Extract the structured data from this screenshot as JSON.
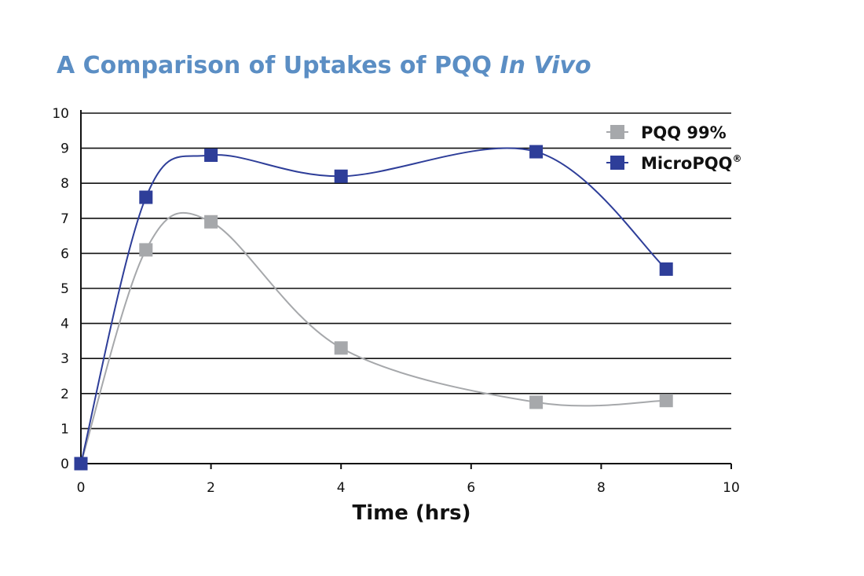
{
  "chart_data": {
    "type": "line",
    "title": "A Comparison of Uptakes of PQQ",
    "title_emphasis": "In Vivo",
    "xlabel": "Time (hrs)",
    "ylabel": "",
    "xlim": [
      0,
      10
    ],
    "ylim": [
      0,
      10
    ],
    "xticks": [
      0,
      2,
      4,
      6,
      8,
      10
    ],
    "yticks": [
      0,
      1,
      2,
      3,
      4,
      5,
      6,
      7,
      8,
      9,
      10
    ],
    "grid": "horizontal",
    "legend_position": "top-right",
    "series": [
      {
        "name": "PQQ 99%",
        "color": "#a6a8ab",
        "x": [
          0,
          1,
          2,
          4,
          7,
          9
        ],
        "y": [
          0,
          6.1,
          6.9,
          3.3,
          1.75,
          1.8
        ]
      },
      {
        "name": "MicroPQQ",
        "name_superscript": "®",
        "color": "#2e3e99",
        "x": [
          0,
          1,
          2,
          4,
          7,
          9
        ],
        "y": [
          0,
          7.6,
          8.8,
          8.2,
          8.9,
          5.55
        ]
      }
    ]
  }
}
